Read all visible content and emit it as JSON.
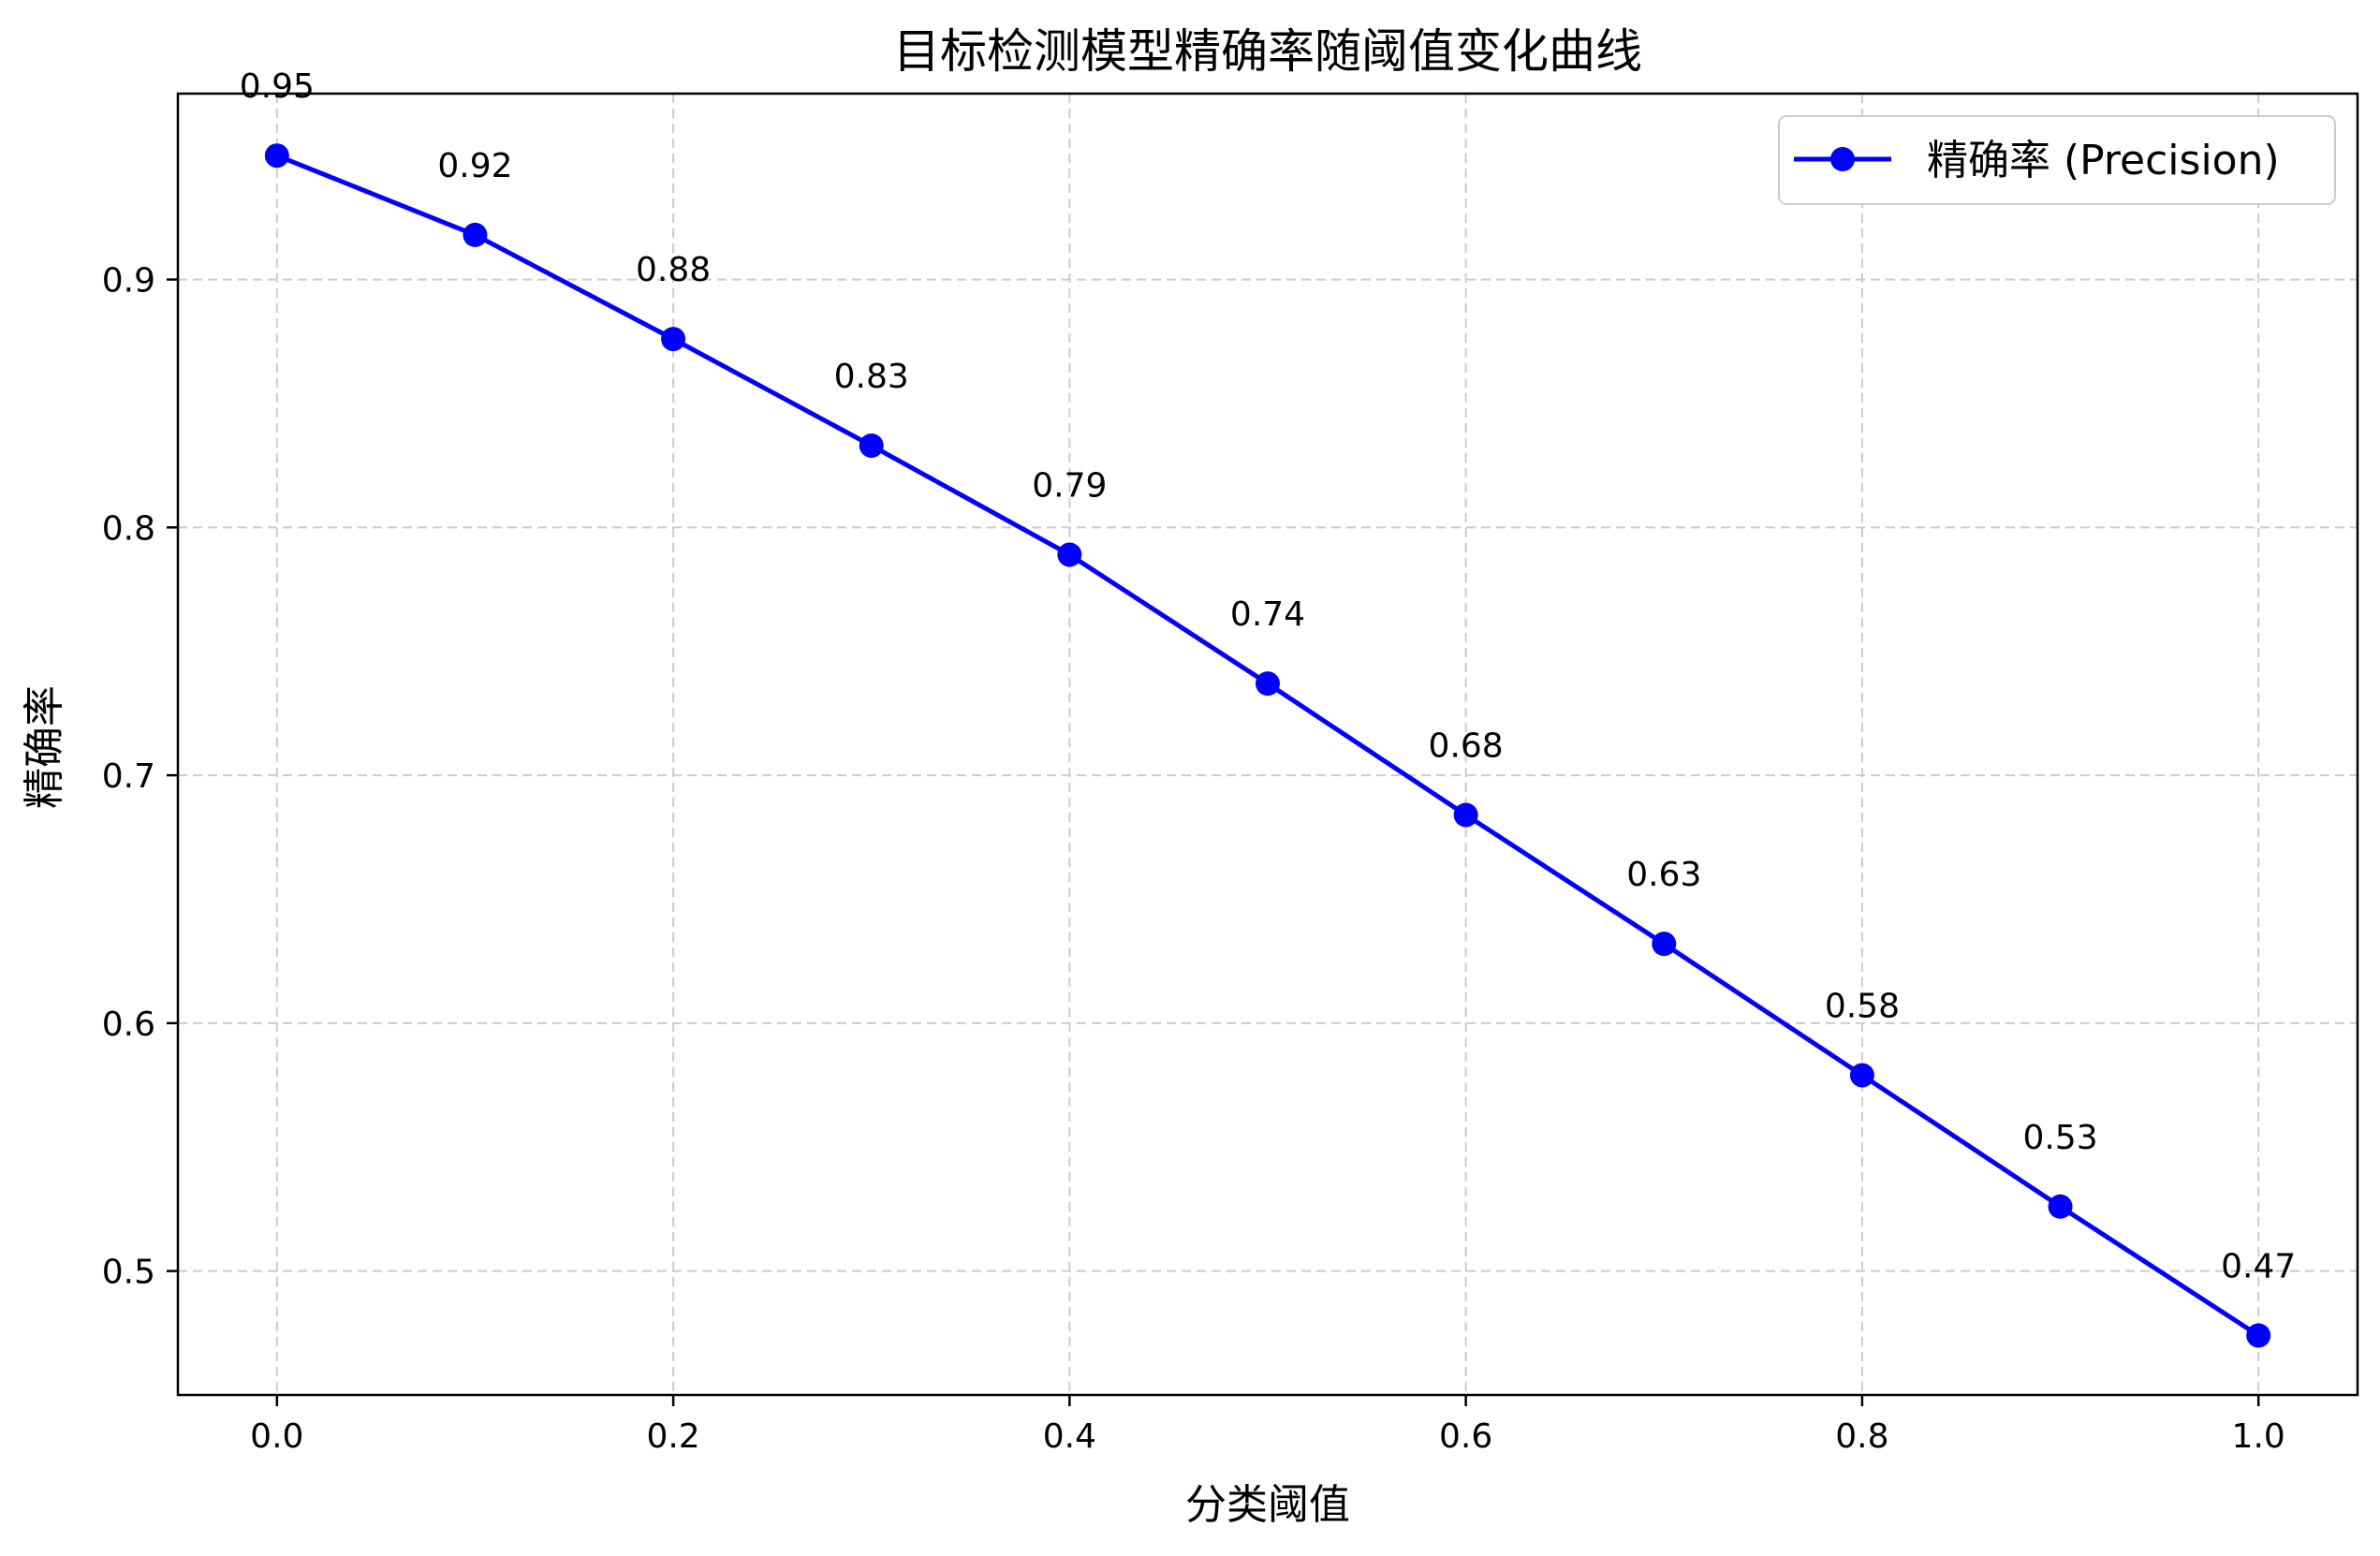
{
  "chart_data": {
    "type": "line",
    "title": "目标检测模型精确率随阈值变化曲线",
    "xlabel": "分类阈值",
    "ylabel": "精确率",
    "x": [
      0.0,
      0.1,
      0.2,
      0.3,
      0.4,
      0.5,
      0.6,
      0.7,
      0.8,
      0.9,
      1.0
    ],
    "series": [
      {
        "name": "精确率 (Precision)",
        "values": [
          0.95,
          0.918,
          0.876,
          0.833,
          0.789,
          0.737,
          0.684,
          0.632,
          0.579,
          0.526,
          0.474
        ],
        "labels": [
          "0.95",
          "0.92",
          "0.88",
          "0.83",
          "0.79",
          "0.74",
          "0.68",
          "0.63",
          "0.58",
          "0.53",
          "0.47"
        ],
        "color": "#0000ff",
        "marker": "circle"
      }
    ],
    "xlim": [
      -0.05,
      1.05
    ],
    "ylim": [
      0.45,
      0.975
    ],
    "xticks": [
      0.0,
      0.2,
      0.4,
      0.6,
      0.8,
      1.0
    ],
    "xtick_labels": [
      "0.0",
      "0.2",
      "0.4",
      "0.6",
      "0.8",
      "1.0"
    ],
    "yticks": [
      0.5,
      0.6,
      0.7,
      0.8,
      0.9
    ],
    "ytick_labels": [
      "0.5",
      "0.6",
      "0.7",
      "0.8",
      "0.9"
    ],
    "grid": true,
    "grid_style": "dashed",
    "legend_position": "top-right"
  },
  "colors": {
    "line": "#0000ff",
    "grid": "#cccccc",
    "axes": "#000000"
  }
}
